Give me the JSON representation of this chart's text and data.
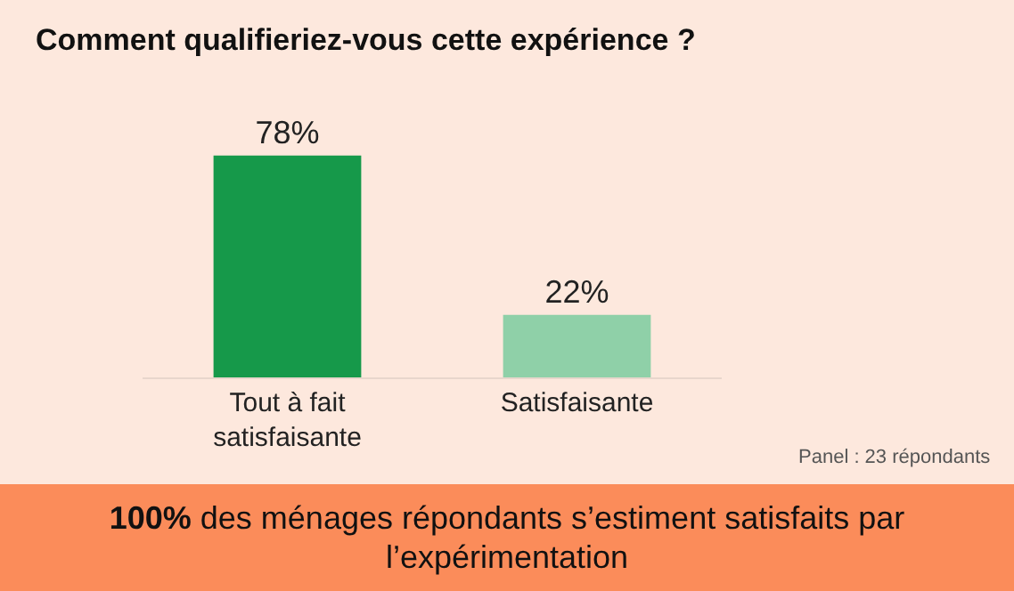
{
  "chart_data": {
    "type": "bar",
    "title": "Comment qualifieriez-vous cette expérience ?",
    "categories": [
      "Tout à fait satisfaisante",
      "Satisfaisante"
    ],
    "values": [
      78,
      22
    ],
    "colors": [
      "#16994a",
      "#8fd0a8"
    ],
    "tick_labels": "x",
    "value_labels": [
      "78%",
      "22%"
    ],
    "annotations": [
      "Panel : 23 répondants",
      "100% des ménages répondants s’estiment satisfaits par l’expérimentation"
    ]
  }
}
